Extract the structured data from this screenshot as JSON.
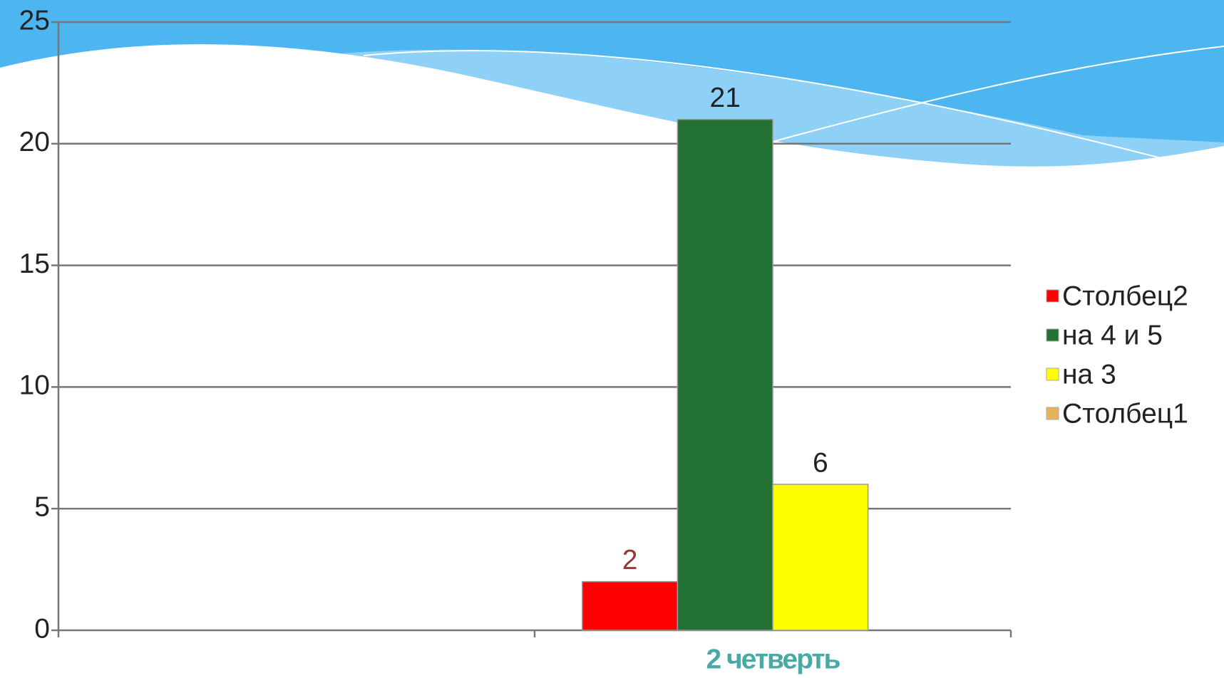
{
  "chart_data": {
    "type": "bar",
    "categories": [
      null,
      "2 четверть"
    ],
    "series": [
      {
        "name": "Столбец2",
        "color": "#ff0000",
        "values": [
          null,
          2
        ]
      },
      {
        "name": "на 4 и 5",
        "color": "#237234",
        "values": [
          null,
          21
        ]
      },
      {
        "name": "на 3",
        "color": "#ffff00",
        "values": [
          null,
          6
        ]
      },
      {
        "name": "Столбец1",
        "color": "#e6b257",
        "values": [
          null,
          null
        ]
      }
    ],
    "ylim": [
      0,
      25
    ],
    "yticks": [
      0,
      5,
      10,
      15,
      20,
      25
    ],
    "grid": true,
    "legend": "right"
  }
}
